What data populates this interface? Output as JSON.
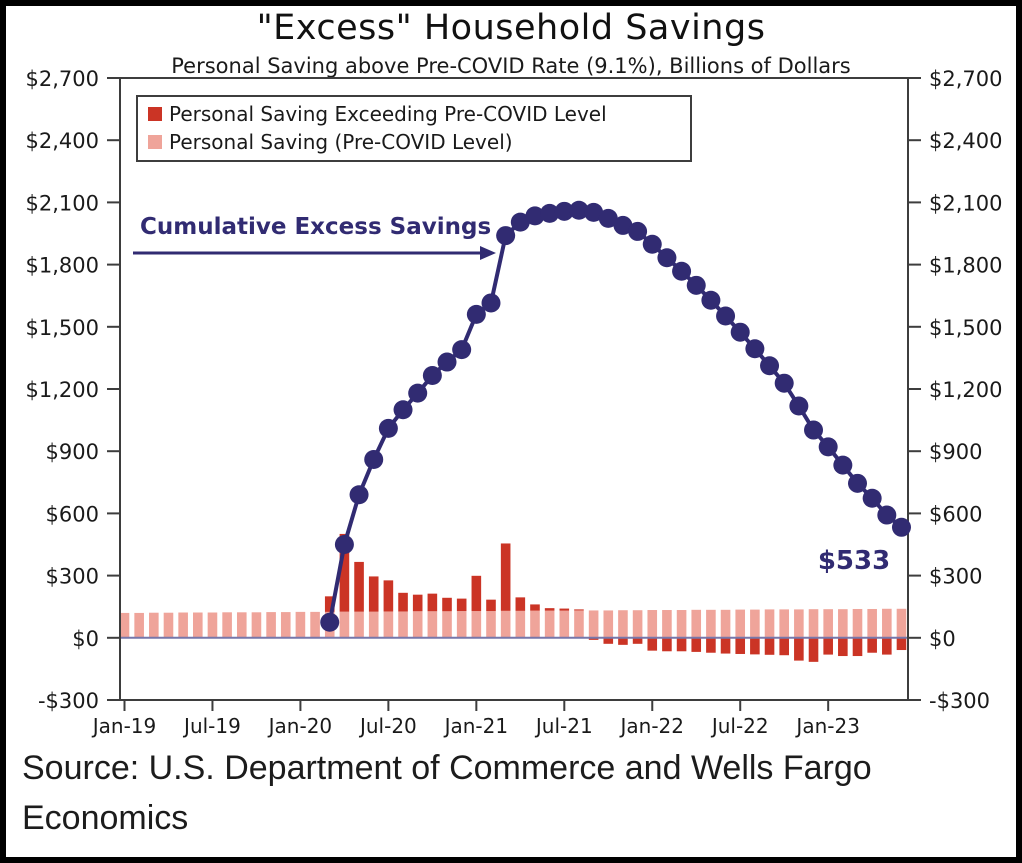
{
  "header": {
    "title": "\"Excess\" Household Savings",
    "subtitle": "Personal Saving above Pre-COVID Rate (9.1%), Billions of Dollars"
  },
  "legend": {
    "items": [
      {
        "label": "Personal Saving Exceeding Pre-COVID Level",
        "color": "#cb3425"
      },
      {
        "label": "Personal Saving (Pre-COVID Level)",
        "color": "#efa49a"
      }
    ]
  },
  "annotations": {
    "line_label": "Cumulative Excess Savings",
    "end_value_label": "$533"
  },
  "source": {
    "text": "Source: U.S. Department of Commerce and Wells Fargo Economics"
  },
  "colors": {
    "line": "#312b72",
    "excess_bar": "#cb3425",
    "precovid_bar": "#efa49a",
    "axis": "#3d3d3d",
    "zero_line": "#7777aa",
    "tick_text": "#1a1a1a"
  },
  "chart_data": {
    "type": "bar",
    "subtype": "stacked-bars-with-cumulative-line",
    "title": "\"Excess\" Household Savings",
    "subtitle": "Personal Saving above Pre-COVID Rate (9.1%), Billions of Dollars",
    "xlabel": "",
    "ylabel": "Billions of Dollars",
    "ylim": [
      -300,
      2700
    ],
    "y_tick_step": 300,
    "y_tick_values": [
      -300,
      0,
      300,
      600,
      900,
      1200,
      1500,
      1800,
      2100,
      2400,
      2700
    ],
    "y_tick_labels": [
      "-$300",
      "$0",
      "$300",
      "$600",
      "$900",
      "$1,200",
      "$1,500",
      "$1,800",
      "$2,100",
      "$2,400",
      "$2,700"
    ],
    "x_tick_labels": [
      "Jan-19",
      "Jul-19",
      "Jan-20",
      "Jul-20",
      "Jan-21",
      "Jul-21",
      "Jan-22",
      "Jul-22",
      "Jan-23"
    ],
    "x_tick_indices": [
      0,
      6,
      12,
      18,
      24,
      30,
      36,
      42,
      48
    ],
    "grid": false,
    "legend_position": "top-left",
    "categories": [
      "Jan-19",
      "Feb-19",
      "Mar-19",
      "Apr-19",
      "May-19",
      "Jun-19",
      "Jul-19",
      "Aug-19",
      "Sep-19",
      "Oct-19",
      "Nov-19",
      "Dec-19",
      "Jan-20",
      "Feb-20",
      "Mar-20",
      "Apr-20",
      "May-20",
      "Jun-20",
      "Jul-20",
      "Aug-20",
      "Sep-20",
      "Oct-20",
      "Nov-20",
      "Dec-20",
      "Jan-21",
      "Feb-21",
      "Mar-21",
      "Apr-21",
      "May-21",
      "Jun-21",
      "Jul-21",
      "Aug-21",
      "Sep-21",
      "Oct-21",
      "Nov-21",
      "Dec-21",
      "Jan-22",
      "Feb-22",
      "Mar-22",
      "Apr-22",
      "May-22",
      "Jun-22",
      "Jul-22",
      "Aug-22",
      "Sep-22",
      "Oct-22",
      "Nov-22",
      "Dec-22",
      "Jan-23",
      "Feb-23",
      "Mar-23",
      "Apr-23",
      "May-23",
      "Jun-23"
    ],
    "series": [
      {
        "name": "Personal Saving (Pre-COVID Level)",
        "type": "bar",
        "color": "#efa49a",
        "values": [
          120,
          120,
          121,
          121,
          122,
          122,
          122,
          123,
          123,
          123,
          124,
          124,
          125,
          125,
          125,
          126,
          126,
          126,
          127,
          127,
          128,
          128,
          128,
          129,
          129,
          129,
          130,
          130,
          131,
          131,
          131,
          132,
          132,
          132,
          133,
          133,
          134,
          134,
          134,
          135,
          135,
          135,
          136,
          136,
          137,
          137,
          137,
          138,
          138,
          138,
          139,
          139,
          140,
          140
        ]
      },
      {
        "name": "Personal Saving Exceeding Pre-COVID Level",
        "type": "bar",
        "stacking": "stacked on pre-COVID bar when positive; below zero when negative",
        "color": "#cb3425",
        "values": [
          0,
          0,
          0,
          0,
          0,
          0,
          0,
          0,
          0,
          0,
          0,
          0,
          0,
          0,
          75,
          375,
          240,
          170,
          150,
          90,
          80,
          85,
          65,
          60,
          170,
          55,
          325,
          65,
          30,
          12,
          10,
          5,
          -10,
          -29,
          -34,
          -29,
          -62,
          -65,
          -65,
          -68,
          -72,
          -76,
          -78,
          -80,
          -82,
          -84,
          -110,
          -116,
          -81,
          -88,
          -88,
          -72,
          -81,
          -59
        ]
      },
      {
        "name": "Cumulative Excess Savings",
        "type": "line",
        "color": "#312b72",
        "marker": "circle",
        "start_category": "Mar-20",
        "start_index": 14,
        "values": [
          75,
          450,
          690,
          860,
          1010,
          1100,
          1180,
          1265,
          1330,
          1390,
          1560,
          1615,
          1940,
          2005,
          2035,
          2047,
          2057,
          2062,
          2052,
          2023,
          1989,
          1960,
          1898,
          1833,
          1768,
          1700,
          1628,
          1552,
          1474,
          1394,
          1312,
          1228,
          1118,
          1002,
          921,
          833,
          745,
          673,
          592,
          533
        ]
      }
    ],
    "annotations": [
      {
        "text": "Cumulative Excess Savings",
        "style": "bold navy with right arrow",
        "position": "upper-left"
      },
      {
        "text": "$533",
        "attached_to": "last line point",
        "position": "right-edge"
      }
    ]
  }
}
